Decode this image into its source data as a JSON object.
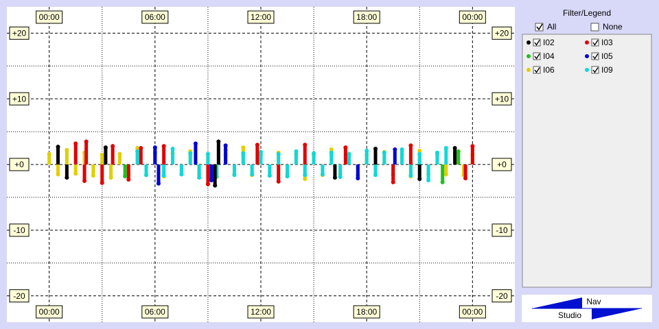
{
  "chart_data": {
    "type": "stem",
    "xlim": [
      -2.4,
      26.4
    ],
    "ylim": [
      -24,
      24
    ],
    "xticks": [
      {
        "value": 0,
        "label": "00:00"
      },
      {
        "value": 6,
        "label": "06:00"
      },
      {
        "value": 12,
        "label": "12:00"
      },
      {
        "value": 18,
        "label": "18:00"
      },
      {
        "value": 24,
        "label": "00:00"
      }
    ],
    "yticks": [
      {
        "value": 20,
        "label": "+20"
      },
      {
        "value": 10,
        "label": "+10"
      },
      {
        "value": 0,
        "label": "+0"
      },
      {
        "value": -10,
        "label": "-10"
      },
      {
        "value": -20,
        "label": "-20"
      }
    ],
    "xminor": [
      3,
      9,
      15,
      21
    ],
    "yminor": [
      15,
      5,
      -5,
      -15
    ],
    "grid": true,
    "series": [
      {
        "name": "I02",
        "color": "#000000",
        "x": [
          0.5,
          1.0,
          3.2,
          9.4,
          9.6,
          16.2,
          18.5,
          21.0,
          23.0
        ],
        "values": [
          2.7,
          -2.0,
          2.6,
          -3.2,
          3.5,
          -2.0,
          2.4,
          -2.2,
          2.5
        ]
      },
      {
        "name": "I03",
        "color": "#e00000",
        "x": [
          1.5,
          2.0,
          2.1,
          3.0,
          3.6,
          4.5,
          5.2,
          6.5,
          9.0,
          11.8,
          13.0,
          14.5,
          16.8,
          19.5,
          20.5,
          23.6,
          24.0
        ],
        "values": [
          3.2,
          -2.5,
          3.5,
          -2.8,
          2.8,
          -2.3,
          2.5,
          2.8,
          -3.0,
          3.0,
          -2.6,
          3.0,
          2.6,
          -2.7,
          2.9,
          -2.1,
          2.8
        ]
      },
      {
        "name": "I04",
        "color": "#20c020",
        "x": [
          4.3,
          22.3,
          23.2
        ],
        "values": [
          -1.8,
          -2.7,
          2.0
        ]
      },
      {
        "name": "I05",
        "color": "#0000d0",
        "x": [
          6.0,
          6.2,
          8.3,
          9.2,
          10.0,
          17.5,
          19.6
        ],
        "values": [
          2.6,
          -2.9,
          3.2,
          -2.4,
          2.9,
          -2.1,
          2.3
        ]
      },
      {
        "name": "I06",
        "color": "#e0d000",
        "x": [
          0,
          0.5,
          1,
          1.5,
          2,
          2.5,
          3,
          3.5,
          4,
          4.5,
          5,
          5.5,
          6,
          6.5,
          7,
          7.5,
          8,
          8.5,
          9,
          9.5,
          10,
          10.5,
          11,
          11.5,
          12,
          12.5,
          13,
          13.5,
          14,
          14.5,
          15,
          15.5,
          16,
          16.5,
          17,
          17.5,
          18,
          18.5,
          19,
          19.5,
          20,
          20.5,
          21,
          21.5,
          22,
          22.5,
          23,
          23.5,
          24
        ],
        "values": [
          1.6,
          -1.5,
          2.2,
          -1.4,
          1.8,
          -1.7,
          1.5,
          -2.0,
          1.6,
          -1.5,
          2.5,
          -1.6,
          1.5,
          -1.8,
          1.7,
          -1.5,
          2.0,
          -1.5,
          1.6,
          -1.9,
          1.5,
          -1.5,
          2.6,
          -1.6,
          1.5,
          -1.7,
          1.8,
          -1.5,
          1.6,
          -2.2,
          1.5,
          -1.6,
          2.3,
          -1.5,
          1.6,
          -1.7,
          1.5,
          -1.5,
          1.9,
          -1.6,
          1.5,
          -1.8,
          2.1,
          -1.5,
          1.6,
          -1.5,
          1.7,
          -1.6,
          1.5
        ]
      },
      {
        "name": "I09",
        "color": "#10d8d8",
        "x": [
          5,
          5.5,
          6,
          6.5,
          7,
          7.5,
          8,
          8.5,
          9,
          9.5,
          10,
          10.5,
          11,
          11.5,
          12,
          12.5,
          13,
          13.5,
          14,
          14.5,
          15,
          15.5,
          16,
          16.5,
          17,
          17.5,
          18,
          18.5,
          19,
          19.5,
          20,
          20.5,
          21,
          21.5,
          22,
          22.5
        ],
        "values": [
          2.0,
          -1.6,
          1.8,
          -1.7,
          2.4,
          -1.5,
          1.7,
          -2.0,
          1.6,
          -1.8,
          2.2,
          -1.6,
          1.7,
          -1.5,
          1.9,
          -1.7,
          1.6,
          -1.8,
          2.0,
          -1.6,
          1.7,
          -1.5,
          1.8,
          -1.9,
          1.6,
          -1.7,
          2.1,
          -1.6,
          1.8,
          -1.5,
          2.3,
          -1.7,
          1.6,
          -2.4,
          1.8,
          2.5
        ]
      }
    ]
  },
  "legend": {
    "title": "Filter/Legend",
    "all": "All",
    "none": "None"
  },
  "nav": {
    "top": "Nav",
    "bottom": "Studio"
  }
}
